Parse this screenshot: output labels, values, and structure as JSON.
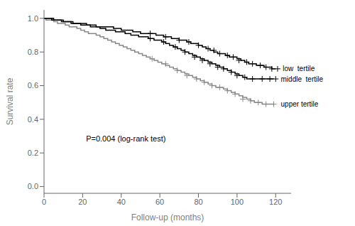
{
  "chart_data": {
    "type": "line",
    "line_style": "step",
    "marker": "plus",
    "xlabel": "Follow-up (months)",
    "ylabel": "Survival rate",
    "annotations": [
      "P=0.004 (log-rank test)"
    ],
    "xlim": [
      0,
      128
    ],
    "ylim": [
      -0.04,
      1.05
    ],
    "xticks": [
      0,
      20,
      40,
      60,
      80,
      100,
      120
    ],
    "yticks": [
      {
        "value": 0,
        "label": "0.0"
      },
      0.2,
      0.4,
      0.6,
      0.8,
      {
        "value": 1.0,
        "label": "1.0"
      }
    ],
    "series": [
      {
        "name": "upper tertile",
        "color": "#888888",
        "x": [
          0,
          1,
          3,
          5,
          7,
          9,
          11,
          13,
          15,
          17,
          19,
          21,
          23,
          25,
          27,
          29,
          31,
          33,
          35,
          37,
          39,
          41,
          43,
          45,
          47,
          49,
          51,
          53,
          55,
          57,
          59,
          61,
          63,
          65,
          67,
          69,
          71,
          73,
          75,
          77,
          79,
          81,
          83,
          85,
          87,
          89,
          91,
          93,
          95,
          97,
          99,
          101,
          103,
          105,
          107,
          109,
          111,
          113,
          115,
          117,
          119
        ],
        "values": [
          1.0,
          0.99,
          0.99,
          0.98,
          0.97,
          0.97,
          0.96,
          0.95,
          0.95,
          0.94,
          0.93,
          0.92,
          0.91,
          0.91,
          0.9,
          0.89,
          0.88,
          0.87,
          0.86,
          0.85,
          0.84,
          0.83,
          0.82,
          0.81,
          0.8,
          0.79,
          0.78,
          0.77,
          0.76,
          0.75,
          0.74,
          0.73,
          0.72,
          0.71,
          0.7,
          0.69,
          0.68,
          0.67,
          0.66,
          0.65,
          0.64,
          0.63,
          0.62,
          0.61,
          0.6,
          0.59,
          0.59,
          0.58,
          0.57,
          0.56,
          0.55,
          0.54,
          0.53,
          0.52,
          0.51,
          0.5,
          0.5,
          0.49,
          0.49,
          0.49,
          0.49
        ],
        "censor_x": [
          56,
          63,
          69,
          74,
          79,
          83,
          87,
          91,
          95,
          99,
          103,
          107,
          111,
          115,
          119
        ],
        "censor_values": [
          0.76,
          0.73,
          0.69,
          0.66,
          0.64,
          0.62,
          0.6,
          0.59,
          0.57,
          0.55,
          0.52,
          0.51,
          0.5,
          0.49,
          0.49
        ]
      },
      {
        "name": "middle  tertile",
        "color": "#000000",
        "x": [
          0,
          2,
          4,
          6,
          9,
          11,
          14,
          16,
          19,
          21,
          24,
          26,
          29,
          32,
          35,
          37,
          39,
          42,
          45,
          47,
          49,
          52,
          54,
          57,
          59,
          61,
          63,
          65,
          67,
          69,
          71,
          73,
          75,
          77,
          79,
          81,
          83,
          85,
          87,
          89,
          91,
          93,
          95,
          97,
          99,
          101,
          103,
          105,
          107,
          109,
          111,
          113,
          115,
          117,
          119
        ],
        "values": [
          1.0,
          1.0,
          0.99,
          0.99,
          0.98,
          0.98,
          0.97,
          0.97,
          0.96,
          0.96,
          0.95,
          0.95,
          0.94,
          0.93,
          0.93,
          0.92,
          0.92,
          0.91,
          0.9,
          0.9,
          0.89,
          0.89,
          0.88,
          0.87,
          0.87,
          0.86,
          0.85,
          0.84,
          0.83,
          0.82,
          0.81,
          0.8,
          0.79,
          0.78,
          0.77,
          0.76,
          0.75,
          0.74,
          0.73,
          0.72,
          0.71,
          0.7,
          0.69,
          0.68,
          0.67,
          0.66,
          0.65,
          0.64,
          0.64,
          0.64,
          0.64,
          0.64,
          0.64,
          0.64,
          0.64
        ],
        "censor_x": [
          55,
          62,
          68,
          73,
          78,
          82,
          86,
          90,
          93,
          97,
          100,
          104,
          108,
          113,
          117,
          120
        ],
        "censor_values": [
          0.88,
          0.86,
          0.83,
          0.8,
          0.77,
          0.75,
          0.73,
          0.71,
          0.7,
          0.68,
          0.66,
          0.65,
          0.64,
          0.64,
          0.64,
          0.64
        ]
      },
      {
        "name": "low  tertile",
        "color": "#000000",
        "x": [
          0,
          3,
          5,
          7,
          10,
          13,
          15,
          17,
          20,
          22,
          25,
          27,
          30,
          33,
          36,
          38,
          40,
          43,
          46,
          48,
          50,
          53,
          55,
          58,
          60,
          62,
          64,
          66,
          68,
          70,
          72,
          74,
          76,
          78,
          80,
          82,
          84,
          86,
          88,
          90,
          92,
          94,
          96,
          98,
          100,
          102,
          104,
          106,
          108,
          110,
          112,
          114,
          116,
          118,
          120
        ],
        "values": [
          1.0,
          1.0,
          0.99,
          0.99,
          0.98,
          0.98,
          0.97,
          0.97,
          0.97,
          0.96,
          0.96,
          0.95,
          0.95,
          0.95,
          0.94,
          0.94,
          0.93,
          0.93,
          0.92,
          0.92,
          0.91,
          0.91,
          0.91,
          0.9,
          0.9,
          0.89,
          0.89,
          0.88,
          0.88,
          0.87,
          0.87,
          0.86,
          0.85,
          0.85,
          0.84,
          0.83,
          0.82,
          0.81,
          0.8,
          0.79,
          0.79,
          0.78,
          0.77,
          0.77,
          0.76,
          0.75,
          0.74,
          0.73,
          0.73,
          0.72,
          0.72,
          0.71,
          0.71,
          0.7,
          0.7
        ],
        "censor_x": [
          55,
          63,
          70,
          75,
          80,
          85,
          88,
          91,
          95,
          98,
          101,
          105,
          108,
          112,
          115,
          118,
          121
        ],
        "censor_values": [
          0.91,
          0.89,
          0.87,
          0.86,
          0.84,
          0.82,
          0.81,
          0.79,
          0.78,
          0.77,
          0.75,
          0.74,
          0.73,
          0.72,
          0.71,
          0.7,
          0.7
        ]
      }
    ]
  }
}
